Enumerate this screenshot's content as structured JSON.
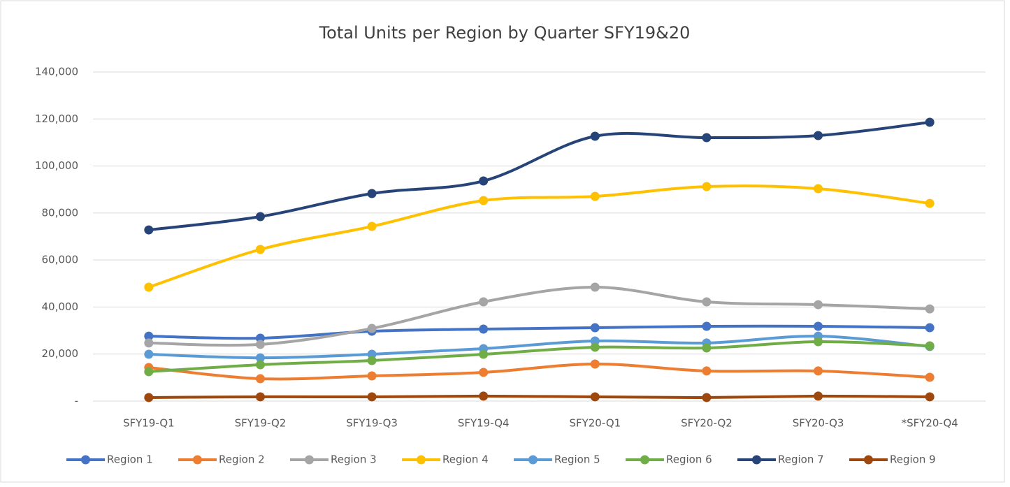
{
  "chart_data": {
    "type": "line",
    "title": "Total Units per Region by Quarter SFY19&20",
    "categories": [
      "SFY19-Q1",
      "SFY19-Q2",
      "SFY19-Q3",
      "SFY19-Q4",
      "SFY20-Q1",
      "SFY20-Q2",
      "SFY20-Q3",
      "*SFY20-Q4"
    ],
    "series": [
      {
        "name": "Region 1",
        "color": "#4472c4",
        "values": [
          27600,
          26750,
          29700,
          30600,
          31200,
          31800,
          31800,
          31200
        ]
      },
      {
        "name": "Region 2",
        "color": "#ed7d31",
        "values": [
          14270,
          9500,
          10700,
          12200,
          15750,
          12800,
          12800,
          10100
        ]
      },
      {
        "name": "Region 3",
        "color": "#a5a5a5",
        "values": [
          24700,
          24100,
          30900,
          42200,
          48450,
          42200,
          41000,
          39200
        ]
      },
      {
        "name": "Region 4",
        "color": "#ffc000",
        "values": [
          48450,
          64500,
          74300,
          85300,
          87100,
          91250,
          90360,
          84100
        ]
      },
      {
        "name": "Region 5",
        "color": "#5b9bd5",
        "values": [
          19900,
          18400,
          19900,
          22300,
          25560,
          24700,
          27600,
          23200
        ]
      },
      {
        "name": "Region 6",
        "color": "#70ad47",
        "values": [
          12500,
          15460,
          17240,
          19900,
          22900,
          22600,
          25260,
          23480
        ]
      },
      {
        "name": "Region 7",
        "color": "#264478",
        "values": [
          72800,
          78470,
          88280,
          93630,
          112650,
          112060,
          112950,
          118600
        ]
      },
      {
        "name": "Region 9",
        "color": "#9e480e",
        "values": [
          1500,
          1800,
          1800,
          2100,
          1800,
          1500,
          2100,
          1800
        ]
      }
    ],
    "ylim": [
      0,
      140000
    ],
    "yticks": [
      {
        "value": 0,
        "label": "-"
      },
      {
        "value": 20000,
        "label": "20,000"
      },
      {
        "value": 40000,
        "label": "40,000"
      },
      {
        "value": 60000,
        "label": "60,000"
      },
      {
        "value": 80000,
        "label": "80,000"
      },
      {
        "value": 100000,
        "label": "100,000"
      },
      {
        "value": 120000,
        "label": "120,000"
      },
      {
        "value": 140000,
        "label": "140,000"
      }
    ],
    "grid": true,
    "legend": "bottom",
    "smooth": true
  }
}
